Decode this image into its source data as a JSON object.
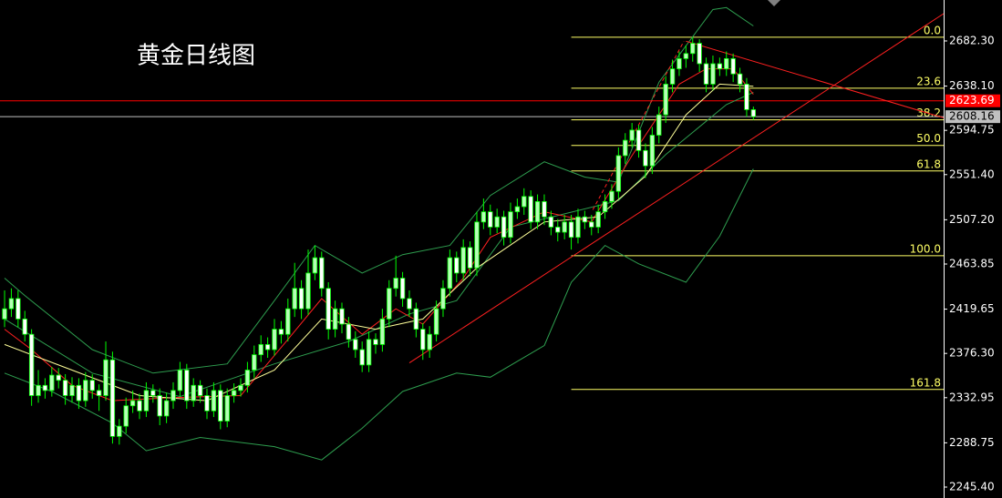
{
  "chart_data": {
    "type": "candlestick",
    "title": "黄金日线图",
    "xlim": [
      -0.68,
      139.2
    ],
    "ylim": [
      2234.7,
      2722.4
    ],
    "yticks": [
      {
        "value": 2682.3,
        "label": "2682.30"
      },
      {
        "value": 2638.1,
        "label": "2638.10"
      },
      {
        "value": 2594.75,
        "label": "2594.75"
      },
      {
        "value": 2551.4,
        "label": "2551.40"
      },
      {
        "value": 2507.2,
        "label": "2507.20"
      },
      {
        "value": 2463.85,
        "label": "2463.85"
      },
      {
        "value": 2419.65,
        "label": "2419.65"
      },
      {
        "value": 2376.3,
        "label": "2376.30"
      },
      {
        "value": 2332.95,
        "label": "2332.95"
      },
      {
        "value": 2288.75,
        "label": "2288.75"
      },
      {
        "value": 2245.4,
        "label": "2245.40"
      }
    ],
    "up_color": "#b6ffb6",
    "down_color": "#ffffff",
    "wick_color": "#00ff00",
    "ohlc": [
      [
        2410,
        2438,
        2402,
        2420
      ],
      [
        2420,
        2440,
        2412,
        2430
      ],
      [
        2430,
        2438,
        2402,
        2410
      ],
      [
        2410,
        2418,
        2388,
        2395
      ],
      [
        2395,
        2400,
        2325,
        2335
      ],
      [
        2335,
        2360,
        2328,
        2345
      ],
      [
        2345,
        2352,
        2332,
        2340
      ],
      [
        2340,
        2363,
        2334,
        2355
      ],
      [
        2355,
        2362,
        2342,
        2350
      ],
      [
        2350,
        2356,
        2326,
        2335
      ],
      [
        2335,
        2353,
        2328,
        2345
      ],
      [
        2345,
        2352,
        2322,
        2330
      ],
      [
        2330,
        2358,
        2324,
        2350
      ],
      [
        2350,
        2356,
        2332,
        2340
      ],
      [
        2340,
        2346,
        2320,
        2335
      ],
      [
        2335,
        2388,
        2330,
        2370
      ],
      [
        2370,
        2378,
        2288,
        2295
      ],
      [
        2295,
        2312,
        2287,
        2305
      ],
      [
        2305,
        2333,
        2298,
        2325
      ],
      [
        2325,
        2340,
        2318,
        2330
      ],
      [
        2330,
        2337,
        2312,
        2320
      ],
      [
        2320,
        2348,
        2314,
        2340
      ],
      [
        2340,
        2346,
        2328,
        2335
      ],
      [
        2335,
        2342,
        2306,
        2315
      ],
      [
        2315,
        2338,
        2308,
        2330
      ],
      [
        2330,
        2348,
        2322,
        2340
      ],
      [
        2340,
        2368,
        2334,
        2360
      ],
      [
        2360,
        2366,
        2322,
        2330
      ],
      [
        2330,
        2352,
        2324,
        2345
      ],
      [
        2345,
        2350,
        2328,
        2335
      ],
      [
        2335,
        2342,
        2312,
        2320
      ],
      [
        2320,
        2348,
        2314,
        2340
      ],
      [
        2340,
        2346,
        2302,
        2310
      ],
      [
        2310,
        2342,
        2304,
        2335
      ],
      [
        2335,
        2347,
        2328,
        2340
      ],
      [
        2340,
        2352,
        2334,
        2345
      ],
      [
        2345,
        2368,
        2338,
        2360
      ],
      [
        2360,
        2384,
        2352,
        2375
      ],
      [
        2375,
        2394,
        2368,
        2385
      ],
      [
        2385,
        2392,
        2372,
        2380
      ],
      [
        2380,
        2410,
        2374,
        2400
      ],
      [
        2400,
        2408,
        2386,
        2395
      ],
      [
        2395,
        2430,
        2388,
        2420
      ],
      [
        2420,
        2465,
        2412,
        2440
      ],
      [
        2440,
        2448,
        2410,
        2420
      ],
      [
        2420,
        2478,
        2414,
        2455
      ],
      [
        2455,
        2482,
        2448,
        2470
      ],
      [
        2470,
        2476,
        2432,
        2440
      ],
      [
        2440,
        2446,
        2390,
        2400
      ],
      [
        2400,
        2428,
        2392,
        2420
      ],
      [
        2420,
        2426,
        2396,
        2405
      ],
      [
        2405,
        2412,
        2382,
        2390
      ],
      [
        2390,
        2398,
        2372,
        2380
      ],
      [
        2380,
        2388,
        2358,
        2365
      ],
      [
        2365,
        2398,
        2358,
        2390
      ],
      [
        2390,
        2396,
        2376,
        2385
      ],
      [
        2385,
        2420,
        2378,
        2410
      ],
      [
        2410,
        2448,
        2402,
        2440
      ],
      [
        2440,
        2472,
        2432,
        2450
      ],
      [
        2450,
        2456,
        2422,
        2430
      ],
      [
        2430,
        2438,
        2412,
        2420
      ],
      [
        2420,
        2426,
        2392,
        2400
      ],
      [
        2400,
        2406,
        2370,
        2380
      ],
      [
        2380,
        2403,
        2372,
        2395
      ],
      [
        2395,
        2428,
        2388,
        2420
      ],
      [
        2420,
        2448,
        2412,
        2440
      ],
      [
        2440,
        2478,
        2432,
        2470
      ],
      [
        2470,
        2476,
        2446,
        2455
      ],
      [
        2455,
        2488,
        2448,
        2480
      ],
      [
        2480,
        2486,
        2452,
        2460
      ],
      [
        2460,
        2515,
        2452,
        2505
      ],
      [
        2505,
        2528,
        2498,
        2515
      ],
      [
        2515,
        2522,
        2492,
        2500
      ],
      [
        2500,
        2518,
        2494,
        2510
      ],
      [
        2510,
        2516,
        2482,
        2490
      ],
      [
        2490,
        2524,
        2484,
        2515
      ],
      [
        2515,
        2528,
        2508,
        2520
      ],
      [
        2520,
        2538,
        2512,
        2530
      ],
      [
        2530,
        2536,
        2498,
        2505
      ],
      [
        2505,
        2532,
        2498,
        2525
      ],
      [
        2525,
        2532,
        2502,
        2510
      ],
      [
        2510,
        2516,
        2492,
        2500
      ],
      [
        2500,
        2508,
        2486,
        2495
      ],
      [
        2495,
        2512,
        2488,
        2505
      ],
      [
        2505,
        2512,
        2478,
        2490
      ],
      [
        2490,
        2518,
        2484,
        2510
      ],
      [
        2510,
        2516,
        2498,
        2505
      ],
      [
        2505,
        2512,
        2492,
        2500
      ],
      [
        2500,
        2522,
        2494,
        2515
      ],
      [
        2515,
        2532,
        2508,
        2525
      ],
      [
        2525,
        2542,
        2518,
        2535
      ],
      [
        2535,
        2578,
        2528,
        2570
      ],
      [
        2570,
        2592,
        2562,
        2585
      ],
      [
        2585,
        2602,
        2578,
        2595
      ],
      [
        2595,
        2600,
        2568,
        2575
      ],
      [
        2575,
        2582,
        2548,
        2560
      ],
      [
        2560,
        2598,
        2552,
        2590
      ],
      [
        2590,
        2618,
        2582,
        2610
      ],
      [
        2610,
        2648,
        2602,
        2640
      ],
      [
        2640,
        2664,
        2632,
        2655
      ],
      [
        2655,
        2672,
        2648,
        2665
      ],
      [
        2665,
        2678,
        2656,
        2670
      ],
      [
        2670,
        2686,
        2662,
        2680
      ],
      [
        2680,
        2684,
        2652,
        2660
      ],
      [
        2660,
        2666,
        2632,
        2640
      ],
      [
        2640,
        2668,
        2634,
        2660
      ],
      [
        2660,
        2666,
        2648,
        2655
      ],
      [
        2655,
        2672,
        2648,
        2665
      ],
      [
        2665,
        2670,
        2642,
        2650
      ],
      [
        2650,
        2656,
        2632,
        2640
      ],
      [
        2640,
        2646,
        2608,
        2615
      ],
      [
        2615,
        2618,
        2605,
        2608.16
      ]
    ],
    "series": [
      {
        "color": "#2e9e4f",
        "x": [
          0,
          3,
          13,
          22,
          33,
          40,
          46,
          53,
          59,
          66,
          72,
          80,
          86,
          91,
          97,
          105,
          107,
          111
        ],
        "values": [
          2450,
          2433,
          2380,
          2357,
          2366,
          2428,
          2482,
          2455,
          2473,
          2482,
          2531,
          2564,
          2549,
          2544,
          2642,
          2713,
          2715,
          2697
        ]
      },
      {
        "color": "#2e9e4f",
        "x": [
          0,
          13,
          26,
          40,
          51,
          60,
          67,
          75,
          83,
          91,
          98,
          107,
          111
        ],
        "values": [
          2410,
          2357,
          2334,
          2366,
          2388,
          2415,
          2428,
          2500,
          2513,
          2526,
          2571,
          2620,
          2632
        ]
      },
      {
        "color": "#2e9e4f",
        "x": [
          0,
          7,
          16,
          21,
          29,
          40,
          47,
          53,
          59,
          67,
          72,
          80,
          84,
          89,
          94,
          101,
          106,
          111
        ],
        "values": [
          2357,
          2339,
          2308,
          2281,
          2294,
          2285,
          2272,
          2303,
          2339,
          2357,
          2353,
          2384,
          2446,
          2482,
          2464,
          2446,
          2491,
          2557
        ]
      },
      {
        "color": "#ff2020",
        "x": [
          0,
          4,
          10,
          16,
          25,
          35,
          42,
          47,
          53,
          58,
          62,
          68,
          72,
          80,
          87,
          93,
          100,
          104,
          108,
          111
        ],
        "values": [
          2400,
          2380,
          2345,
          2330,
          2333,
          2335,
          2390,
          2430,
          2395,
          2420,
          2405,
          2450,
          2490,
          2515,
          2505,
          2570,
          2640,
          2655,
          2655,
          2630
        ]
      },
      {
        "color": "#ffff99",
        "x": [
          0,
          10,
          20,
          30,
          40,
          47,
          55,
          62,
          70,
          80,
          88,
          95,
          101,
          106,
          111
        ],
        "values": [
          2385,
          2360,
          2335,
          2330,
          2360,
          2410,
          2400,
          2410,
          2460,
          2505,
          2510,
          2550,
          2610,
          2640,
          2638
        ]
      }
    ],
    "trendlines": [
      {
        "x": [
          60,
          139.2
        ],
        "values": [
          2367,
          2709
        ],
        "color": "#ff2020",
        "dashed": false
      },
      {
        "x": [
          101,
          139.2
        ],
        "values": [
          2682,
          2607
        ],
        "color": "#ff2020",
        "dashed": false
      },
      {
        "x": [
          87.2,
          100.7
        ],
        "values": [
          2517,
          2682
        ],
        "color": "#ff2020",
        "dashed": true
      }
    ],
    "price_lines": [
      {
        "value": 2623.69,
        "color": "#ff0000",
        "text_color": "#ffffff"
      },
      {
        "value": 2608.16,
        "color": "#c0c0c0",
        "text_color": "#000000"
      }
    ],
    "fib": {
      "x_start": 84,
      "color": "#ffff66",
      "levels": [
        {
          "value": 0,
          "label": "0.0"
        },
        23.6,
        38.2,
        {
          "value": 50,
          "label": "50.0"
        },
        61.8,
        {
          "value": 100,
          "label": "100.0"
        },
        161.8
      ],
      "prices": [
        2686,
        2636,
        2605,
        2580,
        2555,
        2472,
        2341
      ]
    }
  }
}
